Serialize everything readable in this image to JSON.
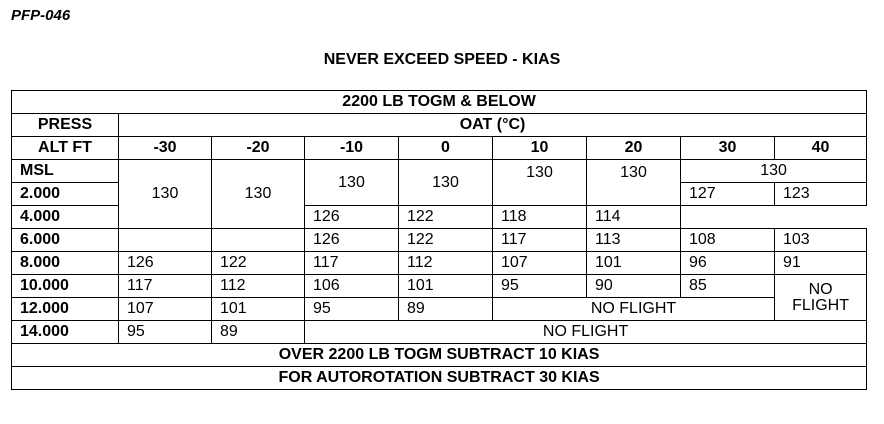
{
  "doc_id": "PFP-046",
  "title": "NEVER EXCEED SPEED - KIAS",
  "table": {
    "header": "2200 LB TOGM & BELOW",
    "press_label_1": "PRESS",
    "press_label_2": "ALT FT",
    "oat_label": "OAT (°C)",
    "temps": [
      "-30",
      "-20",
      "-10",
      "0",
      "10",
      "20",
      "30",
      "40"
    ],
    "alts": [
      "MSL",
      "2.000",
      "4.000",
      "6.000",
      "8.000",
      "10.000",
      "12.000",
      "14.000"
    ],
    "block_130": "130",
    "row_2000": [
      "127",
      "123"
    ],
    "row_4000": [
      "126",
      "122",
      "118",
      "114"
    ],
    "row_6000": [
      "126",
      "122",
      "117",
      "113",
      "108",
      "103"
    ],
    "row_8000": [
      "126",
      "122",
      "117",
      "112",
      "107",
      "101",
      "96",
      "91"
    ],
    "row_10000": [
      "117",
      "112",
      "106",
      "101",
      "95",
      "90",
      "85"
    ],
    "row_12000": [
      "107",
      "101",
      "95",
      "89"
    ],
    "row_14000": [
      "95",
      "89"
    ],
    "no_flight": "NO FLIGHT",
    "no_flight_split_1": "NO",
    "no_flight_split_2": "FLIGHT",
    "footer_1": "OVER 2200 LB TOGM SUBTRACT 10 KIAS",
    "footer_2": "FOR AUTOROTATION SUBTRACT 30 KIAS"
  }
}
